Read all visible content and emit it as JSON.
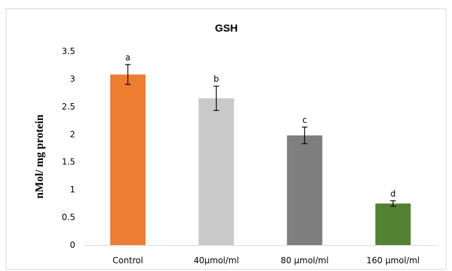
{
  "chart_data": {
    "type": "bar",
    "title": "GSH",
    "xlabel": "",
    "ylabel": "nMol/ mg protein",
    "ylim": [
      0,
      3.5
    ],
    "yticks": [
      "0",
      "0.5",
      "1",
      "1.5",
      "2",
      "2.5",
      "3",
      "3.5"
    ],
    "grid": false,
    "legend": "none",
    "categories": [
      "Control",
      "40µmol/ml",
      "80 µmol/ml",
      "160 µmol/ml"
    ],
    "values": [
      3.08,
      2.65,
      1.98,
      0.75
    ],
    "errors": [
      0.18,
      0.22,
      0.15,
      0.05
    ],
    "significance_labels": [
      "a",
      "b",
      "c",
      "d"
    ],
    "colors": [
      "#ED7D31",
      "#C9C9C9",
      "#7F7F7F",
      "#548235"
    ]
  }
}
